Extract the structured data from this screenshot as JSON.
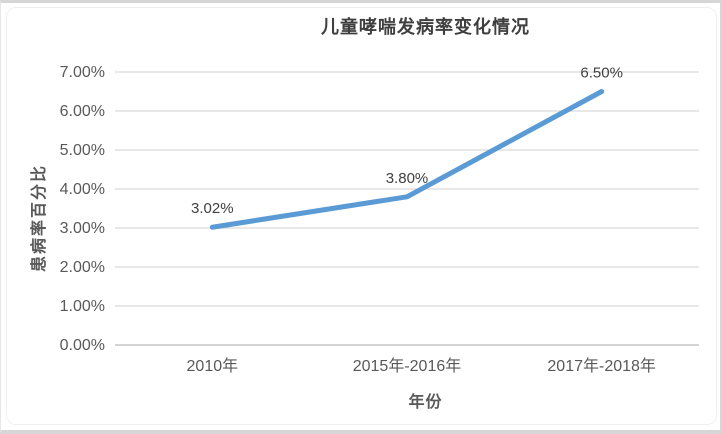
{
  "chart_data": {
    "type": "line",
    "title": "儿童哮喘发病率变化情况",
    "xlabel": "年份",
    "ylabel": "患病率百分比",
    "categories": [
      "2010年",
      "2015年-2016年",
      "2017年-2018年"
    ],
    "values": [
      3.02,
      3.8,
      6.5
    ],
    "data_labels": [
      "3.02%",
      "3.80%",
      "6.50%"
    ],
    "y_ticks": [
      "0.00%",
      "1.00%",
      "2.00%",
      "3.00%",
      "4.00%",
      "5.00%",
      "6.00%",
      "7.00%"
    ],
    "ylim": [
      0,
      7
    ],
    "unit": "%",
    "grid": "horizontal",
    "legend": "none",
    "markers": "none",
    "colors": {
      "line": "#5b9bd5",
      "grid": "#d9d9d9",
      "axis": "#c6c6c6",
      "tick_text": "#595959",
      "label_text": "#404040"
    }
  }
}
